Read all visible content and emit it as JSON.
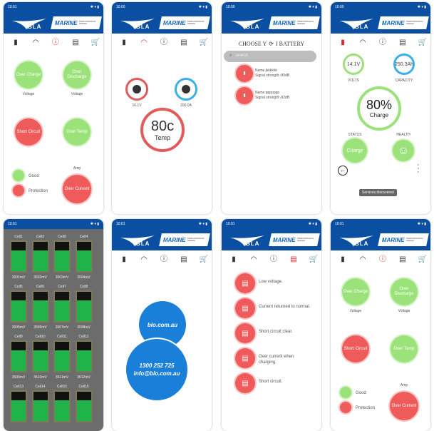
{
  "brand": {
    "logo": "BLA",
    "marine": "MARINE",
    "series": "PERFORMANCE SERIES"
  },
  "colors": {
    "brand_blue": "#0b4fa3",
    "good_green": "#9be27a",
    "alarm_red": "#ef5a5a",
    "active_icon": "#e02020"
  },
  "nav_icons": [
    "battery-icon",
    "gauge-icon",
    "info-icon",
    "document-icon",
    "cart-icon"
  ],
  "panels": [
    {
      "time": "10:01",
      "screen": "protection",
      "active": "info-icon",
      "over_charge": "Over Charge",
      "over_discharge": "Over Discharge",
      "voltage": "Voltage",
      "short_circuit": "Short Circuit",
      "over_temp": "Over Temp",
      "good": "Good",
      "protection": "Protection",
      "amp": "Amp",
      "over_current": "Over Current"
    },
    {
      "time": "10:00",
      "screen": "meters",
      "active": "gauge-icon",
      "voltage": "16.1V",
      "current": "200.0A",
      "temp": "80c",
      "temp_label": "Temp"
    },
    {
      "time": "10:00",
      "screen": "choose",
      "title_a": "CHOOSE Y",
      "title_b": "I BATTERY",
      "search_placeholder": "search",
      "devices": [
        {
          "name": "Name:jkkkkkk",
          "signal": "Signal strength:-80dB"
        },
        {
          "name": "Name:ppppppp",
          "signal": "Signal strength:-82dB"
        }
      ]
    },
    {
      "time": "10:00",
      "screen": "status",
      "active": "battery-icon",
      "volts": "14.1V",
      "volts_label": "VOLTS",
      "capacity": "250.3Ah",
      "capacity_label": "CAPACITY",
      "charge_pct": "80%",
      "charge_label": "Charge",
      "charge_fraction": 0.8,
      "status_label": "STATUS",
      "status_value": "Charge",
      "health_label": "HEALTH",
      "toast": "Services discovered"
    },
    {
      "time": "10:01",
      "screen": "cells",
      "cells": [
        {
          "name": "Cell1",
          "mv": "3501mV"
        },
        {
          "name": "Cell2",
          "mv": "3502mV"
        },
        {
          "name": "Cell3",
          "mv": "3503mV"
        },
        {
          "name": "Cell4",
          "mv": "3504mV"
        },
        {
          "name": "Cell5",
          "mv": "3505mV"
        },
        {
          "name": "Cell6",
          "mv": "3506mV"
        },
        {
          "name": "Cell7",
          "mv": "3507mV"
        },
        {
          "name": "Cell8",
          "mv": "3508mV"
        },
        {
          "name": "Cell9",
          "mv": "3509mV"
        },
        {
          "name": "Cell10",
          "mv": "3510mV"
        },
        {
          "name": "Cell11",
          "mv": "3511mV"
        },
        {
          "name": "Cell12",
          "mv": "3512mV"
        },
        {
          "name": "Cell13",
          "mv": ""
        },
        {
          "name": "Cell14",
          "mv": ""
        },
        {
          "name": "Cell15",
          "mv": ""
        },
        {
          "name": "Cell16",
          "mv": ""
        }
      ]
    },
    {
      "time": "10:01",
      "screen": "contact",
      "active": "cart-icon",
      "website": "blo.com.au",
      "phone": "1300 252 725",
      "email": "info@blo.com.au"
    },
    {
      "time": "10:01",
      "screen": "events",
      "active": "document-icon",
      "events": [
        "Low voltage.",
        "Current returned to normal.",
        "Short circuit clear.",
        "Over current when charging.",
        "Short circuit."
      ]
    },
    {
      "time": "10:01",
      "screen": "protection",
      "active": "info-icon",
      "over_charge": "Over Charge",
      "over_discharge": "Over Discharge",
      "voltage": "Voltage",
      "short_circuit": "Short Circuit",
      "over_temp": "Over Temp",
      "good": "Good",
      "protection": "Protection",
      "amp": "Amp",
      "over_current": "Over Current"
    }
  ]
}
